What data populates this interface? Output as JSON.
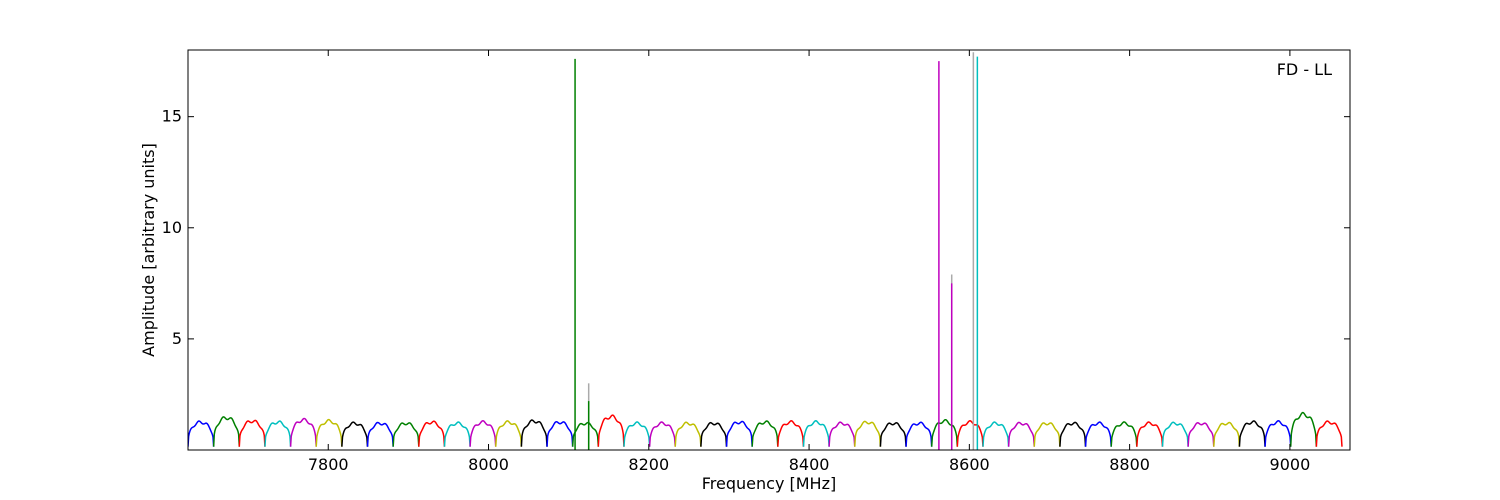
{
  "chart_data": {
    "type": "line",
    "title": "",
    "xlabel": "Frequency [MHz]",
    "ylabel": "Amplitude [arbitrary units]",
    "annotation": "FD - LL",
    "xlim": [
      7625,
      9075
    ],
    "ylim": [
      0,
      18
    ],
    "xticks": [
      7800,
      8000,
      8200,
      8400,
      8600,
      8800,
      9000
    ],
    "yticks": [
      5,
      10,
      15
    ],
    "grid": false,
    "legend": "none",
    "channel_width_mhz": 32,
    "channel_start_mhz": 7625,
    "channel_colors": [
      "#0000ff",
      "#008000",
      "#ff0000",
      "#00bfbf",
      "#bf00bf",
      "#bfbf00",
      "#000000"
    ],
    "channel_peak_levels": [
      1.25,
      1.45,
      1.3,
      1.25,
      1.35,
      1.3,
      1.2,
      1.2,
      1.2,
      1.25,
      1.2,
      1.25,
      1.25,
      1.3,
      1.25,
      1.2,
      1.5,
      1.2,
      1.2,
      1.2,
      1.2,
      1.25,
      1.25,
      1.25,
      1.25,
      1.2,
      1.25,
      1.2,
      1.2,
      1.3,
      1.25,
      1.2,
      1.2,
      1.2,
      1.2,
      1.2,
      1.2,
      1.2,
      1.2,
      1.2,
      1.2,
      1.25,
      1.25,
      1.6,
      1.25
    ],
    "spikes": [
      {
        "x": 8108,
        "y": 17.6,
        "color": "#008000"
      },
      {
        "x": 8125,
        "y": 3.0,
        "color": "#aaaaaa"
      },
      {
        "x": 8125,
        "y": 2.2,
        "color": "#008000"
      },
      {
        "x": 8562,
        "y": 17.5,
        "color": "#bf00bf"
      },
      {
        "x": 8578,
        "y": 7.9,
        "color": "#aaaaaa"
      },
      {
        "x": 8578,
        "y": 7.5,
        "color": "#bf00bf"
      },
      {
        "x": 8610,
        "y": 17.7,
        "color": "#00bfbf"
      },
      {
        "x": 8605,
        "y": 17.9,
        "color": "#aaaaaa"
      }
    ]
  }
}
